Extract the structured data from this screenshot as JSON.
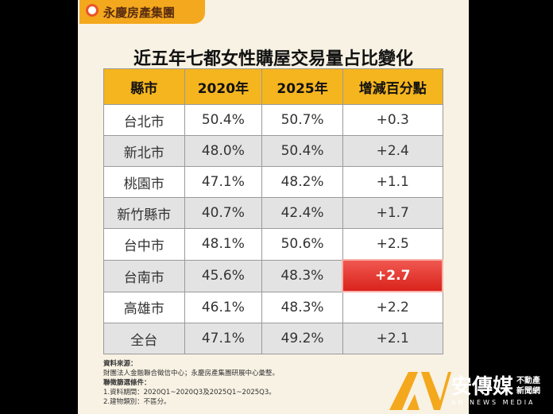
{
  "header": {
    "logo": "永慶房產集團",
    "title": "近五年七都女性購屋交易量占比變化"
  },
  "table": {
    "columns": [
      "縣市",
      "2020年",
      "2025年",
      "增減百分點"
    ],
    "rows": [
      [
        "台北市",
        "50.4%",
        "50.7%",
        "+0.3"
      ],
      [
        "新北市",
        "48.0%",
        "50.4%",
        "+2.4"
      ],
      [
        "桃園市",
        "47.1%",
        "48.2%",
        "+1.1"
      ],
      [
        "新竹縣市",
        "40.7%",
        "42.4%",
        "+1.7"
      ],
      [
        "台中市",
        "48.1%",
        "50.6%",
        "+2.5"
      ],
      [
        "台南市",
        "45.6%",
        "48.3%",
        "+2.7"
      ],
      [
        "高雄市",
        "46.1%",
        "48.3%",
        "+2.2"
      ],
      [
        "全台",
        "47.1%",
        "49.2%",
        "+2.1"
      ]
    ]
  },
  "notes": {
    "source_heading": "資料來源：",
    "source": "財團法人金融聯合徵信中心；永慶房產集團研展中心彙整。",
    "criteria_heading": "聯徵篩選條件：",
    "criteria": [
      "1.資料期間：2020Q1~2020Q3及2025Q1~2025Q3。",
      "2.建物類別：不區分。"
    ]
  },
  "watermark": {
    "name": "安傳媒",
    "tag1": "不動產",
    "tag2": "新聞網",
    "english": "AN NEWS MEDIA"
  }
}
